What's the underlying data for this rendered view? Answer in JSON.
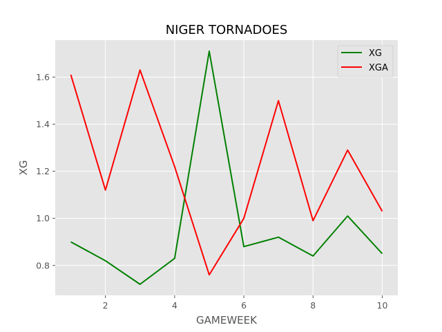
{
  "chart_data": {
    "type": "line",
    "title": "NIGER TORNADOES",
    "xlabel": "GAMEWEEK",
    "ylabel": "XG",
    "x": [
      1,
      2,
      3,
      4,
      5,
      6,
      7,
      8,
      9,
      10
    ],
    "xlim": [
      0.55,
      10.45
    ],
    "ylim": [
      0.673,
      1.757
    ],
    "xticks": [
      2,
      4,
      6,
      8,
      10
    ],
    "xtick_labels": [
      "2",
      "4",
      "6",
      "8",
      "10"
    ],
    "yticks": [
      0.8,
      1.0,
      1.2,
      1.4,
      1.6
    ],
    "ytick_labels": [
      "0.8",
      "1.0",
      "1.2",
      "1.4",
      "1.6"
    ],
    "grid": true,
    "legend_position": "top-right",
    "style": "ggplot",
    "series": [
      {
        "name": "XG",
        "color": "#008000",
        "values": [
          0.9,
          0.82,
          0.72,
          0.83,
          1.71,
          0.88,
          0.92,
          0.84,
          1.01,
          0.85
        ]
      },
      {
        "name": "XGA",
        "color": "#ff0000",
        "values": [
          1.61,
          1.12,
          1.63,
          1.22,
          0.76,
          1.0,
          1.5,
          0.99,
          1.29,
          1.03
        ]
      }
    ]
  }
}
